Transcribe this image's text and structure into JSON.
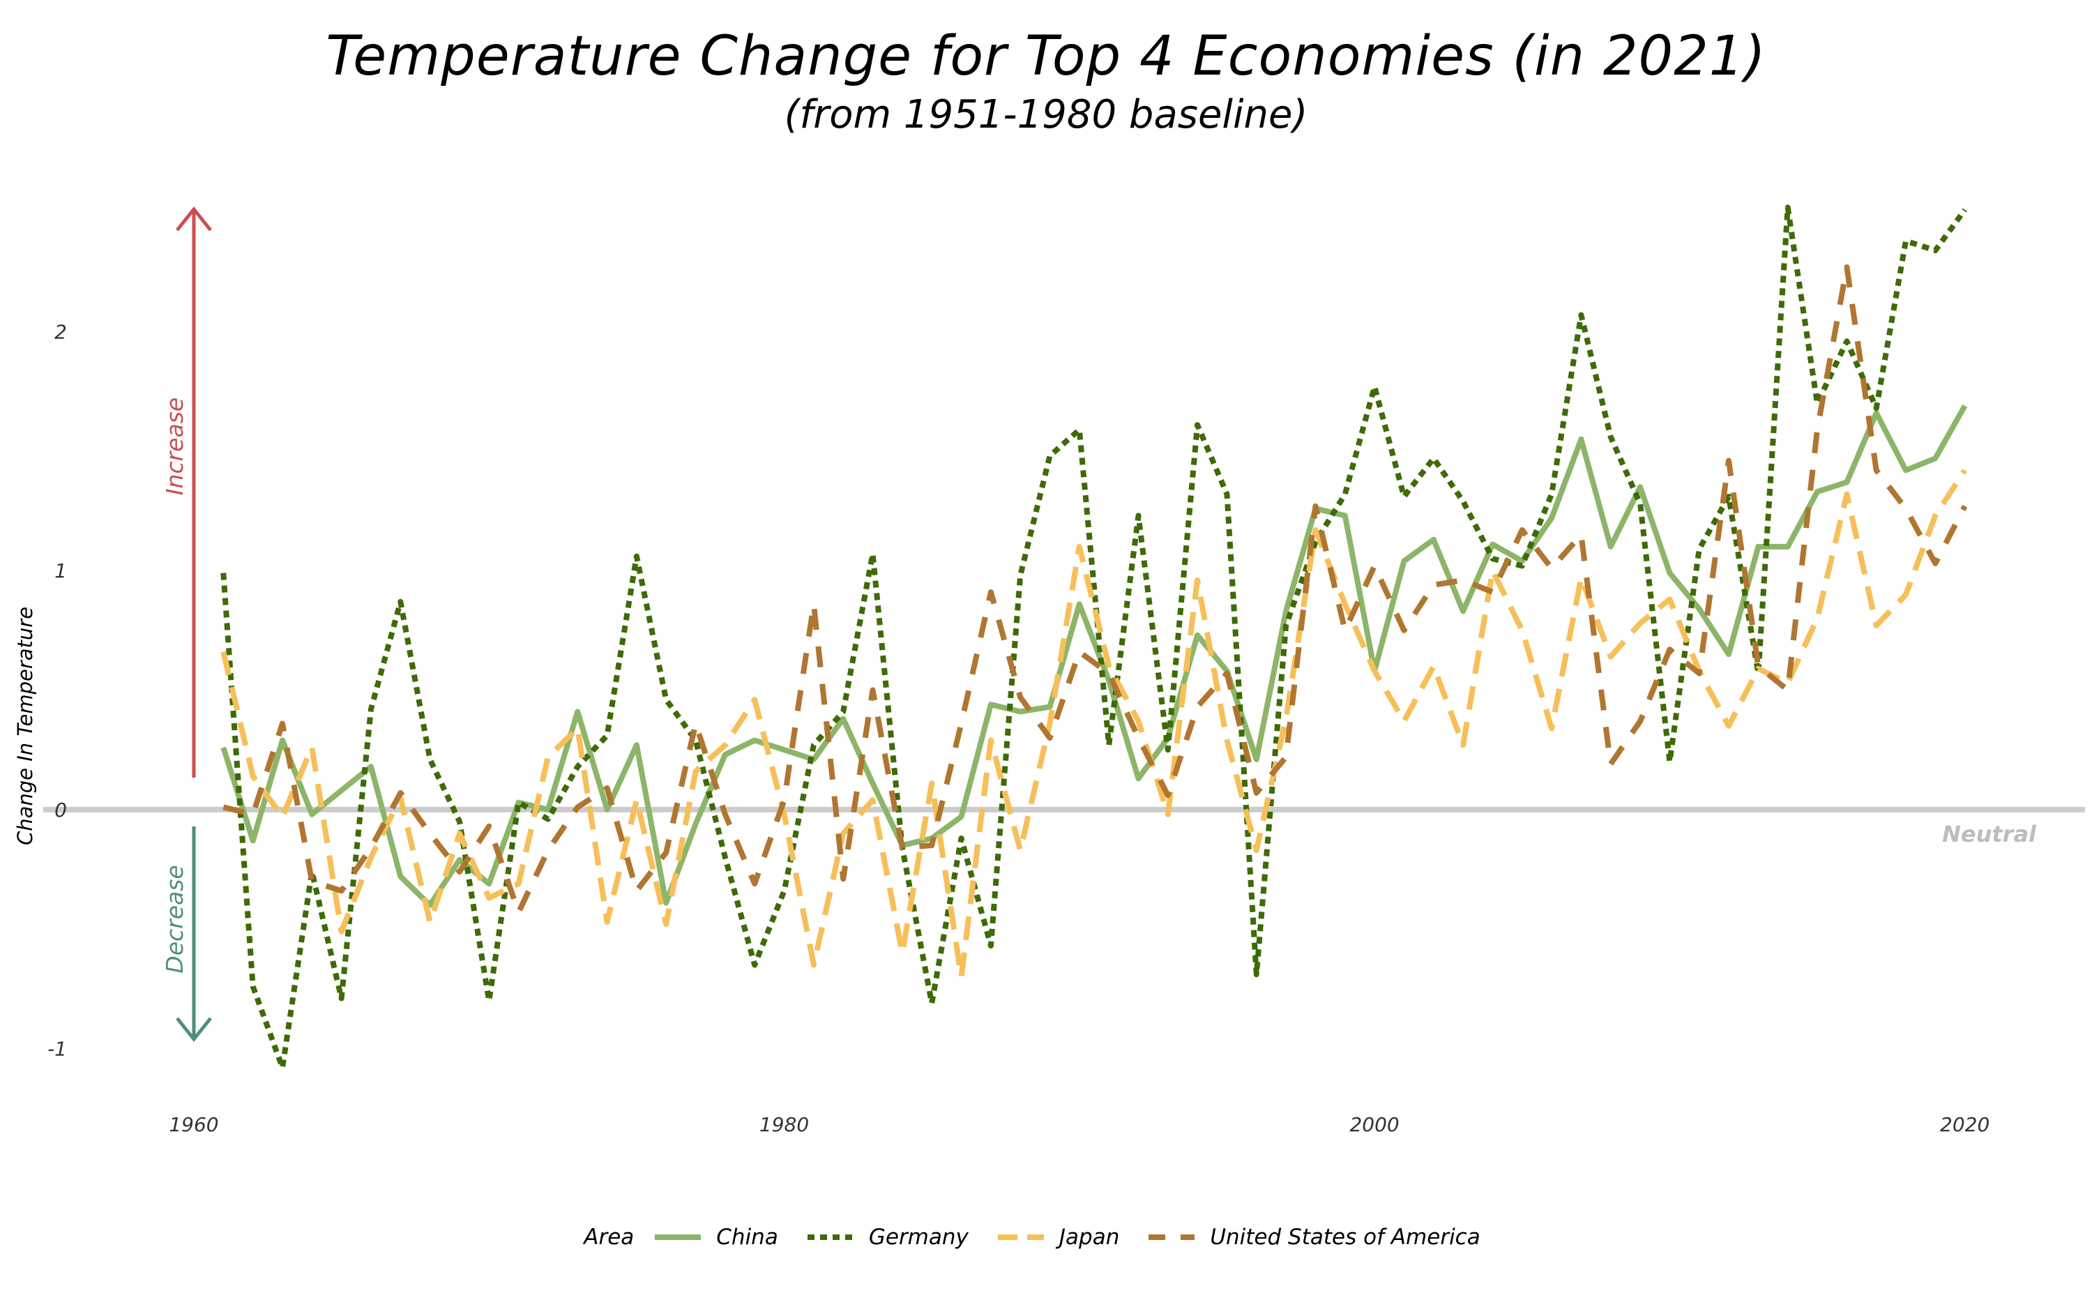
{
  "chart_data": {
    "type": "line",
    "title": "Temperature Change for Top 4 Economies (in 2021)",
    "subtitle": "(from 1951-1980 baseline)",
    "xlabel": "",
    "ylabel": "Change In Temperature",
    "xlim": [
      1960,
      2021
    ],
    "ylim": [
      -1.2,
      2.6
    ],
    "x_ticks": [
      1960,
      1980,
      2000,
      2020
    ],
    "y_ticks": [
      -1,
      0,
      1,
      2
    ],
    "grid": false,
    "legend_position": "bottom",
    "legend_title": "Area",
    "neutral_label": "Neutral",
    "neutral_value": 0,
    "increase_label": "Increase",
    "decrease_label": "Decrease",
    "x": [
      1961,
      1962,
      1963,
      1964,
      1965,
      1966,
      1967,
      1968,
      1969,
      1970,
      1971,
      1972,
      1973,
      1974,
      1975,
      1976,
      1977,
      1978,
      1979,
      1980,
      1981,
      1982,
      1983,
      1984,
      1985,
      1986,
      1987,
      1988,
      1989,
      1990,
      1991,
      1992,
      1993,
      1994,
      1995,
      1996,
      1997,
      1998,
      1999,
      2000,
      2001,
      2002,
      2003,
      2004,
      2005,
      2006,
      2007,
      2008,
      2009,
      2010,
      2011,
      2012,
      2013,
      2014,
      2015,
      2016,
      2017,
      2018,
      2019,
      2020
    ],
    "series": [
      {
        "name": "China",
        "color": "#8db56a",
        "dash": "solid",
        "values": [
          0.26,
          -0.13,
          0.29,
          -0.02,
          0.08,
          0.18,
          -0.28,
          -0.4,
          -0.21,
          -0.31,
          0.03,
          0.0,
          0.41,
          0.0,
          0.27,
          -0.39,
          -0.06,
          0.23,
          0.29,
          0.25,
          0.21,
          0.38,
          0.11,
          -0.15,
          -0.12,
          -0.03,
          0.44,
          0.41,
          0.43,
          0.86,
          0.54,
          0.13,
          0.3,
          0.73,
          0.58,
          0.21,
          0.83,
          1.26,
          1.23,
          0.58,
          1.04,
          1.13,
          0.83,
          1.11,
          1.04,
          1.22,
          1.55,
          1.1,
          1.35,
          0.99,
          0.84,
          0.65,
          1.1,
          1.1,
          1.33,
          1.37,
          1.66,
          1.42,
          1.47,
          1.69
        ]
      },
      {
        "name": "Germany",
        "color": "#3d6b06",
        "dash": "dotted",
        "values": [
          0.99,
          -0.74,
          -1.08,
          -0.26,
          -0.79,
          0.42,
          0.87,
          0.21,
          -0.05,
          -0.8,
          0.03,
          -0.04,
          0.18,
          0.31,
          1.06,
          0.46,
          0.29,
          -0.2,
          -0.65,
          -0.34,
          0.27,
          0.41,
          1.07,
          -0.16,
          -0.81,
          -0.12,
          -0.57,
          0.98,
          1.48,
          1.59,
          0.27,
          1.23,
          0.25,
          1.61,
          1.32,
          -0.69,
          0.77,
          1.12,
          1.32,
          1.77,
          1.31,
          1.47,
          1.29,
          1.05,
          1.02,
          1.32,
          2.07,
          1.56,
          1.28,
          0.2,
          1.09,
          1.31,
          0.57,
          2.52,
          1.7,
          1.96,
          1.68,
          2.38,
          2.34,
          2.51
        ]
      },
      {
        "name": "Japan",
        "color": "#f6bf59",
        "dash": "long-dash",
        "values": [
          0.66,
          0.14,
          -0.03,
          0.26,
          -0.51,
          -0.2,
          0.05,
          -0.47,
          -0.1,
          -0.37,
          -0.31,
          0.22,
          0.34,
          -0.47,
          0.04,
          -0.48,
          0.16,
          0.27,
          0.46,
          -0.02,
          -0.65,
          -0.1,
          0.04,
          -0.6,
          0.11,
          -0.7,
          0.29,
          -0.17,
          0.36,
          1.1,
          0.6,
          0.37,
          -0.02,
          0.96,
          0.29,
          -0.17,
          0.38,
          1.17,
          0.86,
          0.58,
          0.37,
          0.6,
          0.27,
          1.0,
          0.75,
          0.34,
          0.97,
          0.64,
          0.78,
          0.88,
          0.58,
          0.35,
          0.59,
          0.53,
          0.8,
          1.32,
          0.77,
          0.9,
          1.23,
          1.42
        ]
      },
      {
        "name": "United States of America",
        "color": "#b07631",
        "dash": "dash",
        "values": [
          0.01,
          -0.02,
          0.36,
          -0.3,
          -0.34,
          -0.16,
          0.07,
          -0.1,
          -0.26,
          -0.07,
          -0.43,
          -0.17,
          0.01,
          0.09,
          -0.34,
          -0.18,
          0.36,
          -0.02,
          -0.31,
          0.04,
          0.86,
          -0.29,
          0.5,
          -0.16,
          -0.15,
          0.36,
          0.91,
          0.47,
          0.3,
          0.66,
          0.57,
          0.3,
          0.06,
          0.43,
          0.57,
          0.07,
          0.22,
          1.27,
          0.75,
          1.02,
          0.75,
          0.94,
          0.96,
          0.91,
          1.17,
          1.01,
          1.15,
          0.19,
          0.37,
          0.67,
          0.57,
          1.46,
          0.6,
          0.5,
          1.59,
          2.27,
          1.42,
          1.26,
          1.03,
          1.27
        ]
      }
    ]
  }
}
